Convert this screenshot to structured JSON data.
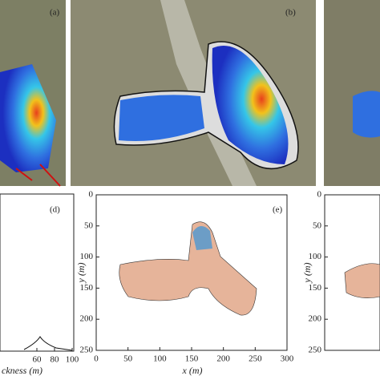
{
  "panels": [
    {
      "label": "(a)"
    },
    {
      "label": "(b)"
    },
    {
      "label": "(d)",
      "x_label": "ckness (m)",
      "xlim": [
        20,
        100
      ],
      "xticks": [
        60,
        80,
        100
      ]
    },
    {
      "label": "(e)",
      "x_label": "x (m)",
      "y_label": "y (m)",
      "xlim": [
        0,
        300
      ],
      "xticks": [
        0,
        50,
        100,
        150,
        200,
        250,
        300
      ],
      "ylim": [
        0,
        250
      ],
      "yticks": [
        0,
        50,
        100,
        150,
        200,
        250
      ]
    },
    {
      "label": "y (m)",
      "ylim": [
        0,
        250
      ],
      "yticks": [
        0,
        50,
        100,
        150,
        200,
        250
      ]
    }
  ]
}
